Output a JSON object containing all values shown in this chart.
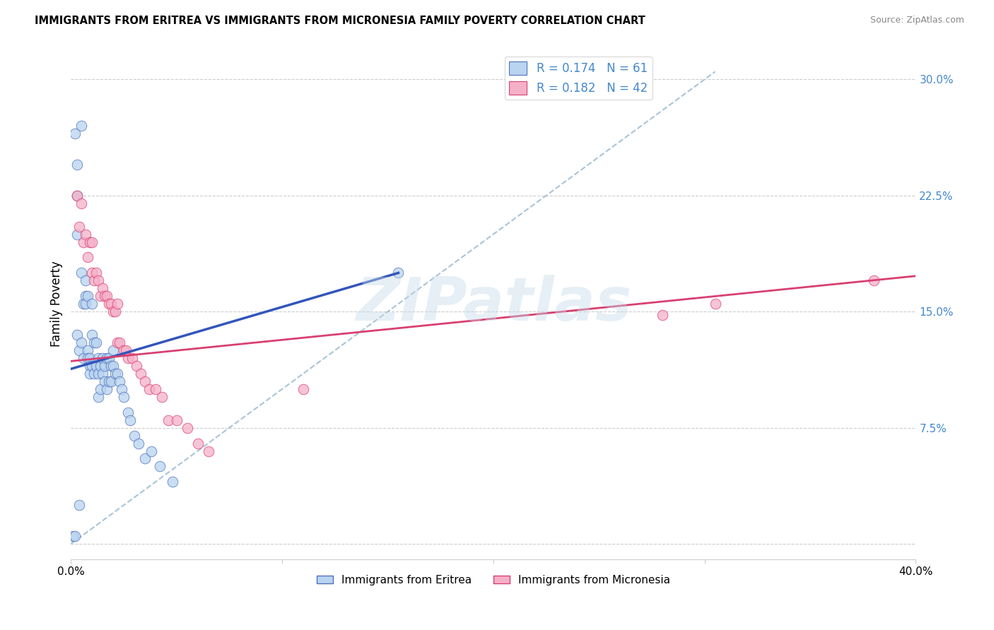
{
  "title": "IMMIGRANTS FROM ERITREA VS IMMIGRANTS FROM MICRONESIA FAMILY POVERTY CORRELATION CHART",
  "source": "Source: ZipAtlas.com",
  "ylabel": "Family Poverty",
  "yticks": [
    0.0,
    0.075,
    0.15,
    0.225,
    0.3
  ],
  "ytick_labels": [
    "",
    "7.5%",
    "15.0%",
    "22.5%",
    "30.0%"
  ],
  "xlim": [
    0.0,
    0.4
  ],
  "ylim": [
    -0.01,
    0.32
  ],
  "color_eritrea_fill": "#b8d4f0",
  "color_eritrea_edge": "#5070bb",
  "color_micronesia_fill": "#f5b0c8",
  "color_micronesia_edge": "#d84070",
  "color_line_eritrea": "#3355bb",
  "color_line_micronesia": "#d84070",
  "color_diagonal": "#a8c4d8",
  "color_grid": "#cccccc",
  "color_ytick": "#4488cc",
  "watermark": "ZIPatlas",
  "R_eritrea": 0.174,
  "N_eritrea": 61,
  "R_micronesia": 0.182,
  "N_micronesia": 42,
  "eritrea_line_x": [
    0.0,
    0.155
  ],
  "eritrea_line_y": [
    0.113,
    0.175
  ],
  "micronesia_line_x": [
    0.0,
    0.4
  ],
  "micronesia_line_y": [
    0.118,
    0.173
  ],
  "eritrea_x": [
    0.001,
    0.002,
    0.002,
    0.003,
    0.003,
    0.003,
    0.003,
    0.004,
    0.004,
    0.005,
    0.005,
    0.005,
    0.006,
    0.006,
    0.007,
    0.007,
    0.007,
    0.008,
    0.008,
    0.008,
    0.009,
    0.009,
    0.009,
    0.01,
    0.01,
    0.01,
    0.011,
    0.011,
    0.012,
    0.012,
    0.013,
    0.013,
    0.013,
    0.014,
    0.014,
    0.015,
    0.015,
    0.016,
    0.016,
    0.017,
    0.017,
    0.018,
    0.018,
    0.019,
    0.019,
    0.02,
    0.02,
    0.021,
    0.022,
    0.023,
    0.024,
    0.025,
    0.027,
    0.028,
    0.03,
    0.032,
    0.035,
    0.038,
    0.042,
    0.048,
    0.155
  ],
  "eritrea_y": [
    0.005,
    0.265,
    0.005,
    0.245,
    0.225,
    0.2,
    0.135,
    0.125,
    0.025,
    0.27,
    0.175,
    0.13,
    0.155,
    0.12,
    0.17,
    0.16,
    0.155,
    0.16,
    0.125,
    0.12,
    0.12,
    0.115,
    0.11,
    0.155,
    0.135,
    0.115,
    0.13,
    0.11,
    0.13,
    0.115,
    0.12,
    0.11,
    0.095,
    0.115,
    0.1,
    0.12,
    0.11,
    0.115,
    0.105,
    0.12,
    0.1,
    0.12,
    0.105,
    0.115,
    0.105,
    0.125,
    0.115,
    0.11,
    0.11,
    0.105,
    0.1,
    0.095,
    0.085,
    0.08,
    0.07,
    0.065,
    0.055,
    0.06,
    0.05,
    0.04,
    0.175
  ],
  "micronesia_x": [
    0.003,
    0.004,
    0.005,
    0.006,
    0.007,
    0.008,
    0.009,
    0.01,
    0.01,
    0.011,
    0.012,
    0.013,
    0.014,
    0.015,
    0.016,
    0.017,
    0.018,
    0.019,
    0.02,
    0.021,
    0.022,
    0.022,
    0.023,
    0.025,
    0.026,
    0.027,
    0.029,
    0.031,
    0.033,
    0.035,
    0.037,
    0.04,
    0.043,
    0.046,
    0.05,
    0.055,
    0.06,
    0.065,
    0.11,
    0.28,
    0.305,
    0.38
  ],
  "micronesia_y": [
    0.225,
    0.205,
    0.22,
    0.195,
    0.2,
    0.185,
    0.195,
    0.175,
    0.195,
    0.17,
    0.175,
    0.17,
    0.16,
    0.165,
    0.16,
    0.16,
    0.155,
    0.155,
    0.15,
    0.15,
    0.155,
    0.13,
    0.13,
    0.125,
    0.125,
    0.12,
    0.12,
    0.115,
    0.11,
    0.105,
    0.1,
    0.1,
    0.095,
    0.08,
    0.08,
    0.075,
    0.065,
    0.06,
    0.1,
    0.148,
    0.155,
    0.17
  ]
}
